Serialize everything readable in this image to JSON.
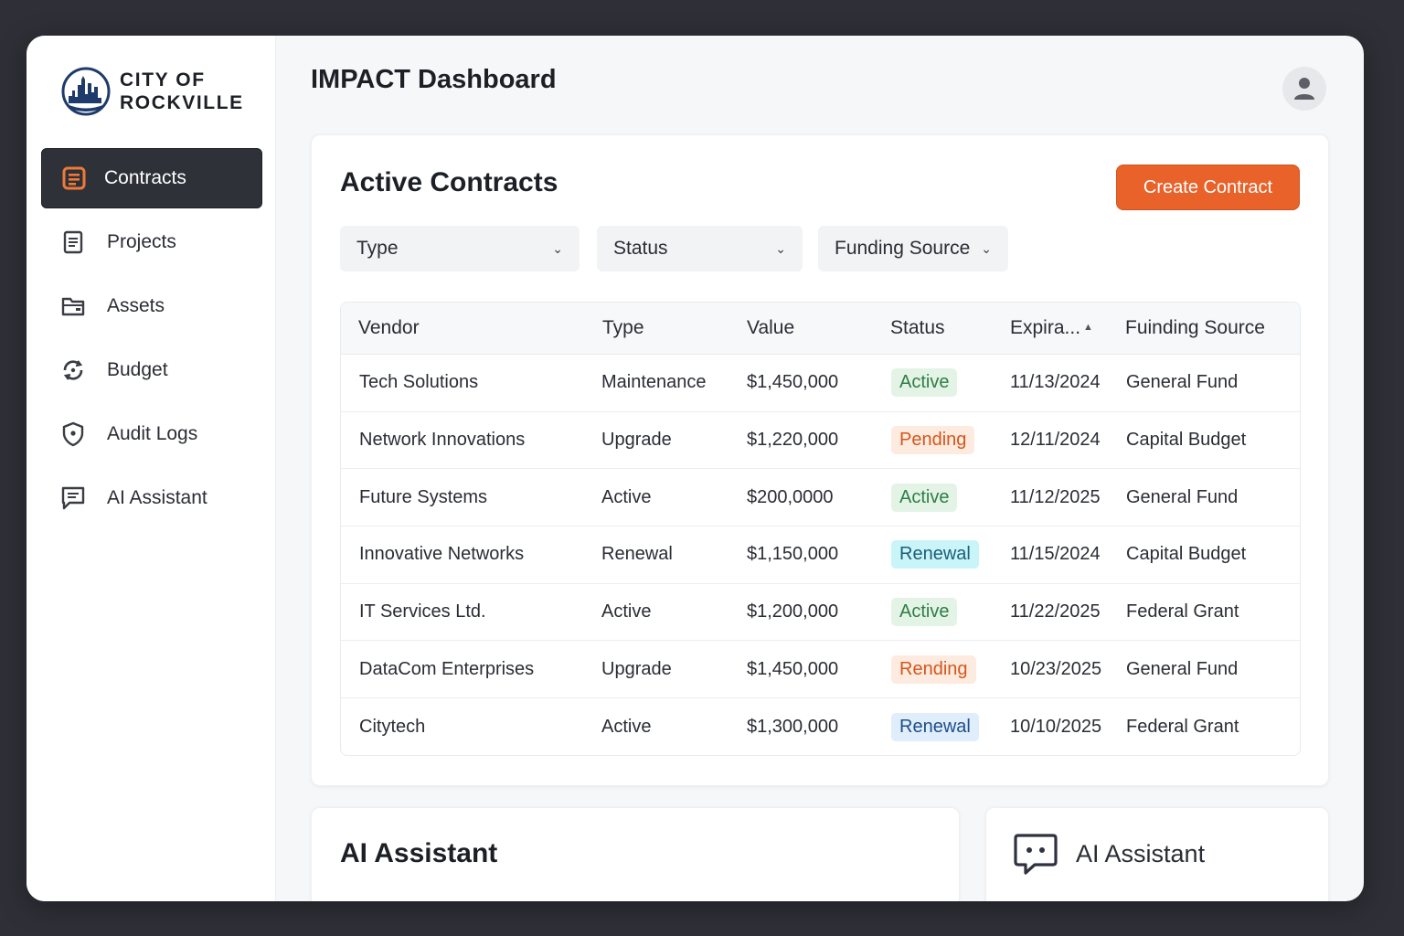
{
  "brand": {
    "line1": "CITY OF",
    "line2": "ROCKVILLE",
    "logo_icon": "city-skyline-seal-icon"
  },
  "sidebar": {
    "items": [
      {
        "label": "Contracts",
        "icon": "contract-icon",
        "active": true
      },
      {
        "label": "Projects",
        "icon": "document-icon",
        "active": false
      },
      {
        "label": "Assets",
        "icon": "folder-icon",
        "active": false
      },
      {
        "label": "Budget",
        "icon": "refresh-cycle-icon",
        "active": false
      },
      {
        "label": "Audit Logs",
        "icon": "shield-icon",
        "active": false
      },
      {
        "label": "AI Assistant",
        "icon": "chat-icon",
        "active": false
      }
    ]
  },
  "header": {
    "title": "IMPACT Dashboard",
    "avatar_icon": "user-icon"
  },
  "contracts": {
    "title": "Active Contracts",
    "create_label": "Create Contract",
    "filters": [
      {
        "label": "Type"
      },
      {
        "label": "Status"
      },
      {
        "label": "Funding Source"
      }
    ],
    "columns": {
      "vendor": "Vendor",
      "type": "Type",
      "value": "Value",
      "status": "Status",
      "expiration": "Expira...",
      "funding": "Fuinding Source"
    },
    "rows": [
      {
        "vendor": "Tech Solutions",
        "type": "Maintenance",
        "value": "$1,450,000",
        "status": "Active",
        "expiration": "11/13/2024",
        "funding": "General Fund"
      },
      {
        "vendor": "Network Innovations",
        "type": "Upgrade",
        "value": "$1,220,000",
        "status": "Pending",
        "expiration": "12/11/2024",
        "funding": "Capital Budget"
      },
      {
        "vendor": "Future Systems",
        "type": "Active",
        "value": "$200,0000",
        "status": "Active",
        "expiration": "11/12/2025",
        "funding": "General Fund"
      },
      {
        "vendor": "Innovative Networks",
        "type": "Renewal",
        "value": "$1,150,000",
        "status": "Renewal",
        "expiration": "11/15/2024",
        "funding": "Capital Budget"
      },
      {
        "vendor": "IT Services Ltd.",
        "type": "Active",
        "value": "$1,200,000",
        "status": "Active",
        "expiration": "11/22/2025",
        "funding": "Federal Grant"
      },
      {
        "vendor": "DataCom Enterprises",
        "type": "Upgrade",
        "value": "$1,450,000",
        "status": "Rending",
        "expiration": "10/23/2025",
        "funding": "General Fund"
      },
      {
        "vendor": "Citytech",
        "type": "Active",
        "value": "$1,300,000",
        "status": "Renewal",
        "expiration": "10/10/2025",
        "funding": "Federal Grant"
      }
    ]
  },
  "ai_panel": {
    "title": "AI Assistant"
  },
  "ai_widget": {
    "label": "AI Assistant",
    "icon": "chat-bubble-icon"
  },
  "colors": {
    "accent": "#e8622a",
    "sidebar_active": "#2f3138",
    "active_badge": "#2f7d45",
    "pending_badge": "#d4561b"
  }
}
